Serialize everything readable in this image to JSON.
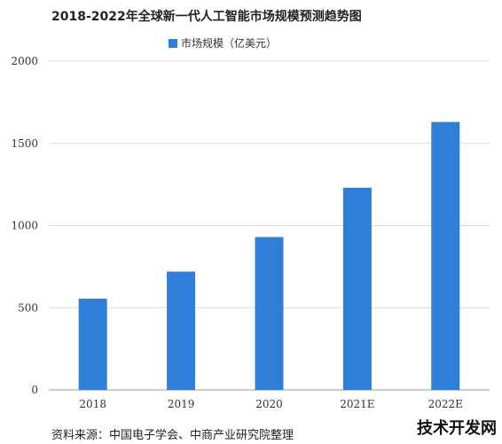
{
  "title": "2018-2022年全球新一代人工智能市场规模预测趋势图",
  "legend_label": "市场规模（亿美元）",
  "source": "资料来源：中国电子学会、中商产业研究院整理",
  "brand": "技术开发网",
  "colors": {
    "bar": "#2f7ed8",
    "grid": "#d9d9d9",
    "axis": "#999999"
  },
  "chart_data": {
    "type": "bar",
    "title": "2018-2022年全球新一代人工智能市场规模预测趋势图",
    "categories": [
      "2018",
      "2019",
      "2020",
      "2021E",
      "2022E"
    ],
    "series": [
      {
        "name": "市场规模（亿美元）",
        "values": [
          555,
          720,
          930,
          1230,
          1630
        ]
      }
    ],
    "ylim": [
      0,
      2000
    ],
    "yticks": [
      0,
      500,
      1000,
      1500,
      2000
    ],
    "grid": true,
    "legend": "top"
  }
}
